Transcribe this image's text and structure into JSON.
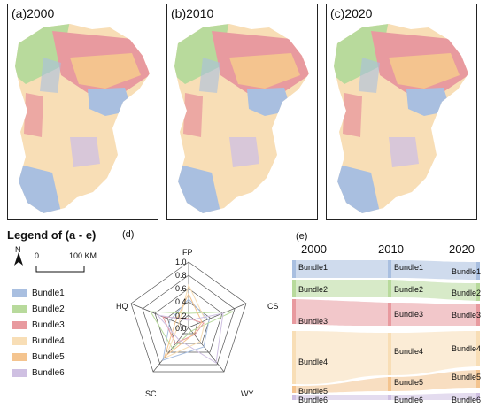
{
  "maps": [
    {
      "label": "(a)2000"
    },
    {
      "label": "(b)2010"
    },
    {
      "label": "(c)2020"
    }
  ],
  "legend": {
    "title": "Legend of (a - e)",
    "north": "N",
    "scale_zero": "0",
    "scale_end": "100 KM",
    "items": [
      {
        "label": "Bundle1",
        "color": "#a9bfe0"
      },
      {
        "label": "Bundle2",
        "color": "#b8da9c"
      },
      {
        "label": "Bundle3",
        "color": "#e89a9f"
      },
      {
        "label": "Bundle4",
        "color": "#f8deb6"
      },
      {
        "label": "Bundle5",
        "color": "#f4c48f"
      },
      {
        "label": "Bundle6",
        "color": "#cfc0e2"
      }
    ]
  },
  "radar": {
    "label": "(d)",
    "axes": [
      "FP",
      "CS",
      "WY",
      "SC",
      "HQ"
    ],
    "ticks": [
      "1.0",
      "0.8",
      "0.6",
      "0.4",
      "0.2",
      "0.0"
    ]
  },
  "sankey": {
    "label": "(e)",
    "years": [
      "2000",
      "2010",
      "2020"
    ],
    "columns": [
      [
        "Bundle1",
        "Bundle2",
        "Bundle3",
        "Bundle4",
        "Bundle5",
        "Bundle6"
      ],
      [
        "Bundle1",
        "Bundle2",
        "Bundle3",
        "Bundle4",
        "Bundle5",
        "Bundle6"
      ],
      [
        "Bundle1",
        "Bundle2",
        "Bundle3",
        "Bundle4",
        "Bundle5",
        "Bundle6"
      ]
    ]
  }
}
